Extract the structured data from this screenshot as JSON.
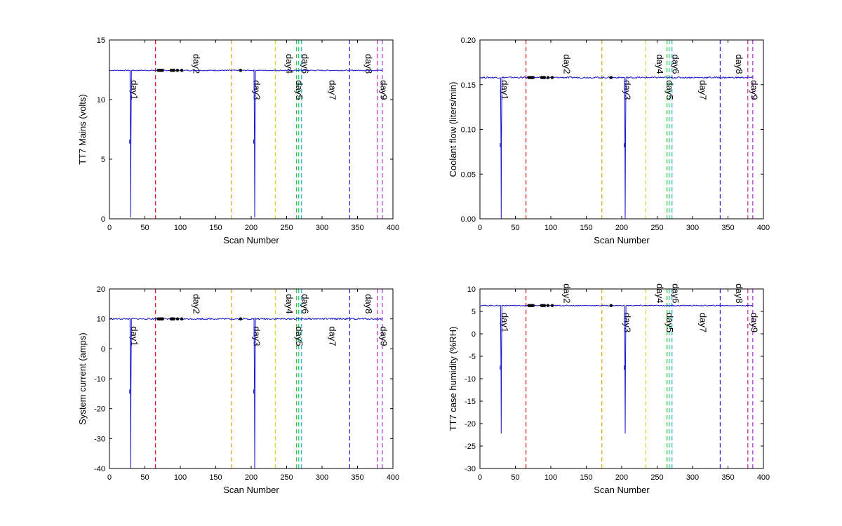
{
  "chart_data": [
    {
      "type": "line",
      "ylabel": "TT7 Mains  (volts)",
      "xlabel": "Scan Number",
      "xlim": [
        0,
        400
      ],
      "ylim": [
        0,
        15
      ],
      "xticks": [
        0,
        50,
        100,
        150,
        200,
        250,
        300,
        350,
        400
      ],
      "yticks": [
        0,
        5,
        10,
        15
      ],
      "baseline": 12.45,
      "noise": 0.04,
      "dips": [
        {
          "x": 30,
          "y": 0.1,
          "mid": 6.3
        },
        {
          "x": 205,
          "y": 0.1,
          "mid": 6.3
        }
      ],
      "markers": [
        {
          "x": 69,
          "y": 12.45
        },
        {
          "x": 71,
          "y": 12.45
        },
        {
          "x": 73,
          "y": 12.45
        },
        {
          "x": 75,
          "y": 12.45
        },
        {
          "x": 87,
          "y": 12.45
        },
        {
          "x": 89,
          "y": 12.45
        },
        {
          "x": 91,
          "y": 12.45
        },
        {
          "x": 96,
          "y": 12.45
        },
        {
          "x": 102,
          "y": 12.45
        },
        {
          "x": 185,
          "y": 12.45
        }
      ],
      "day_labels": [
        {
          "text": "day1",
          "x": 35,
          "y": 10.8
        },
        {
          "text": "day2",
          "x": 123,
          "y": 13.0
        },
        {
          "text": "day3",
          "x": 208,
          "y": 10.8
        },
        {
          "text": "day4",
          "x": 254,
          "y": 13.0
        },
        {
          "text": "day5",
          "x": 268,
          "y": 10.8
        },
        {
          "text": "day6",
          "x": 276,
          "y": 13.0
        },
        {
          "text": "day7",
          "x": 315,
          "y": 10.8
        },
        {
          "text": "day8",
          "x": 366,
          "y": 13.0
        },
        {
          "text": "day9",
          "x": 387,
          "y": 10.8
        }
      ]
    },
    {
      "type": "line",
      "ylabel": "Coolant flow (liters/min)",
      "xlabel": "Scan Number",
      "xlim": [
        0,
        400
      ],
      "ylim": [
        0,
        0.2
      ],
      "xticks": [
        0,
        50,
        100,
        150,
        200,
        250,
        300,
        350,
        400
      ],
      "yticks": [
        0.0,
        0.05,
        0.1,
        0.15,
        0.2
      ],
      "ytick_labels": [
        "0.00",
        "0.05",
        "0.10",
        "0.15",
        "0.20"
      ],
      "baseline": 0.158,
      "noise": 0.0008,
      "dips": [
        {
          "x": 30,
          "y": 0.0,
          "mid": 0.08
        },
        {
          "x": 205,
          "y": 0.0,
          "mid": 0.08
        }
      ],
      "markers": [
        {
          "x": 69,
          "y": 0.158
        },
        {
          "x": 71,
          "y": 0.158
        },
        {
          "x": 73,
          "y": 0.158
        },
        {
          "x": 75,
          "y": 0.158
        },
        {
          "x": 87,
          "y": 0.158
        },
        {
          "x": 89,
          "y": 0.158
        },
        {
          "x": 91,
          "y": 0.158
        },
        {
          "x": 96,
          "y": 0.158
        },
        {
          "x": 102,
          "y": 0.158
        },
        {
          "x": 185,
          "y": 0.158
        }
      ],
      "day_labels": [
        {
          "text": "day1",
          "x": 35,
          "y": 0.144
        },
        {
          "text": "day2",
          "x": 123,
          "y": 0.173
        },
        {
          "text": "day3",
          "x": 208,
          "y": 0.144
        },
        {
          "text": "day4",
          "x": 254,
          "y": 0.173
        },
        {
          "text": "day5",
          "x": 268,
          "y": 0.144
        },
        {
          "text": "day6",
          "x": 276,
          "y": 0.173
        },
        {
          "text": "day7",
          "x": 315,
          "y": 0.144
        },
        {
          "text": "day8",
          "x": 366,
          "y": 0.173
        },
        {
          "text": "day9",
          "x": 387,
          "y": 0.144
        }
      ]
    },
    {
      "type": "line",
      "ylabel": "System current (amps)",
      "xlabel": "Scan Number",
      "xlim": [
        0,
        400
      ],
      "ylim": [
        -40,
        20
      ],
      "xticks": [
        0,
        50,
        100,
        150,
        200,
        250,
        300,
        350,
        400
      ],
      "yticks": [
        -40,
        -30,
        -20,
        -10,
        0,
        10,
        20
      ],
      "baseline": 10.0,
      "noise": 0.25,
      "dips": [
        {
          "x": 30,
          "y": -40,
          "mid": -15
        },
        {
          "x": 205,
          "y": -40,
          "mid": -15
        }
      ],
      "markers": [
        {
          "x": 69,
          "y": 10.0
        },
        {
          "x": 71,
          "y": 10.0
        },
        {
          "x": 73,
          "y": 10.0
        },
        {
          "x": 75,
          "y": 10.0
        },
        {
          "x": 87,
          "y": 10.0
        },
        {
          "x": 89,
          "y": 10.0
        },
        {
          "x": 91,
          "y": 10.0
        },
        {
          "x": 96,
          "y": 10.0
        },
        {
          "x": 102,
          "y": 10.0
        },
        {
          "x": 185,
          "y": 10.0
        }
      ],
      "day_labels": [
        {
          "text": "day1",
          "x": 35,
          "y": 4.2
        },
        {
          "text": "day2",
          "x": 123,
          "y": 15.0
        },
        {
          "text": "day3",
          "x": 208,
          "y": 4.2
        },
        {
          "text": "day4",
          "x": 254,
          "y": 15.0
        },
        {
          "text": "day5",
          "x": 268,
          "y": 4.2
        },
        {
          "text": "day6",
          "x": 276,
          "y": 15.0
        },
        {
          "text": "day7",
          "x": 315,
          "y": 4.2
        },
        {
          "text": "day8",
          "x": 366,
          "y": 15.0
        },
        {
          "text": "day9",
          "x": 387,
          "y": 4.2
        }
      ]
    },
    {
      "type": "line",
      "ylabel": "TT7 case humidity (%RH)",
      "xlabel": "Scan Number",
      "xlim": [
        0,
        400
      ],
      "ylim": [
        -30,
        10
      ],
      "xticks": [
        0,
        50,
        100,
        150,
        200,
        250,
        300,
        350,
        400
      ],
      "yticks": [
        -30,
        -25,
        -20,
        -15,
        -10,
        -5,
        0,
        5,
        10
      ],
      "baseline": 6.3,
      "noise": 0.1,
      "dips": [
        {
          "x": 30,
          "y": -22.2,
          "mid": -8
        },
        {
          "x": 205,
          "y": -22.2,
          "mid": -8
        }
      ],
      "markers": [
        {
          "x": 69,
          "y": 6.3
        },
        {
          "x": 71,
          "y": 6.3
        },
        {
          "x": 73,
          "y": 6.3
        },
        {
          "x": 75,
          "y": 6.3
        },
        {
          "x": 87,
          "y": 6.3
        },
        {
          "x": 89,
          "y": 6.3
        },
        {
          "x": 91,
          "y": 6.3
        },
        {
          "x": 96,
          "y": 6.3
        },
        {
          "x": 102,
          "y": 6.3
        },
        {
          "x": 185,
          "y": 6.3
        }
      ],
      "day_labels": [
        {
          "text": "day1",
          "x": 35,
          "y": 2.5
        },
        {
          "text": "day2",
          "x": 123,
          "y": 9.0
        },
        {
          "text": "day3",
          "x": 208,
          "y": 2.5
        },
        {
          "text": "day4",
          "x": 254,
          "y": 9.0
        },
        {
          "text": "day5",
          "x": 268,
          "y": 2.5
        },
        {
          "text": "day6",
          "x": 276,
          "y": 9.0
        },
        {
          "text": "day7",
          "x": 315,
          "y": 2.5
        },
        {
          "text": "day8",
          "x": 366,
          "y": 9.0
        },
        {
          "text": "day9",
          "x": 387,
          "y": 2.5
        }
      ]
    }
  ],
  "day_lines": [
    {
      "x": 65,
      "color": "#e8141e"
    },
    {
      "x": 172,
      "color": "#e0a81a"
    },
    {
      "x": 234,
      "color": "#d8d02a"
    },
    {
      "x": 264,
      "color": "#2ac834"
    },
    {
      "x": 267,
      "color": "#1ec86e"
    },
    {
      "x": 271,
      "color": "#22b4d0"
    },
    {
      "x": 339,
      "color": "#2222d8"
    },
    {
      "x": 378,
      "color": "#d020b0"
    },
    {
      "x": 385,
      "color": "#9a30c8"
    }
  ],
  "colors": {
    "series": "#1414c8",
    "marker": "#000000",
    "axes": "#000000"
  }
}
